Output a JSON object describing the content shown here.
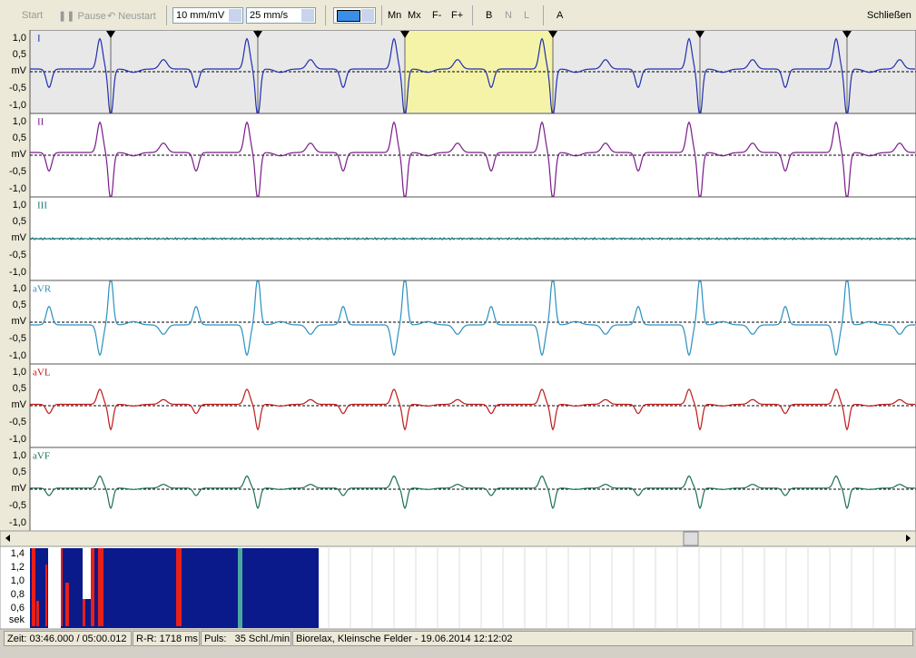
{
  "toolbar": {
    "start": "Start",
    "pause": "Pause",
    "restart": "Neustart",
    "amplitude": "10 mm/mV",
    "speed": "25 mm/s",
    "mn": "Mn",
    "mx": "Mx",
    "f_minus": "F-",
    "f_plus": "F+",
    "b": "B",
    "n": "N",
    "l": "L",
    "a": "A",
    "close": "Schließen"
  },
  "lead_scale": [
    "1,0",
    "0,5",
    "mV",
    "-0,5",
    "-1,0"
  ],
  "leads": [
    "I",
    "II",
    "III",
    "aVR",
    "aVL",
    "aVF"
  ],
  "rr_scale": [
    "1,4",
    "1,2",
    "1,0",
    "0,8",
    "0,6",
    "sek"
  ],
  "status": {
    "time": "Zeit: 03:46.000 / 05:00.012",
    "rr": "R-R: 1718 ms",
    "pulse_label": "Puls:",
    "pulse": "35 Schl./min",
    "info": "Biorelax, Kleinsche Felder - 19.06.2014 12:12:02"
  }
}
